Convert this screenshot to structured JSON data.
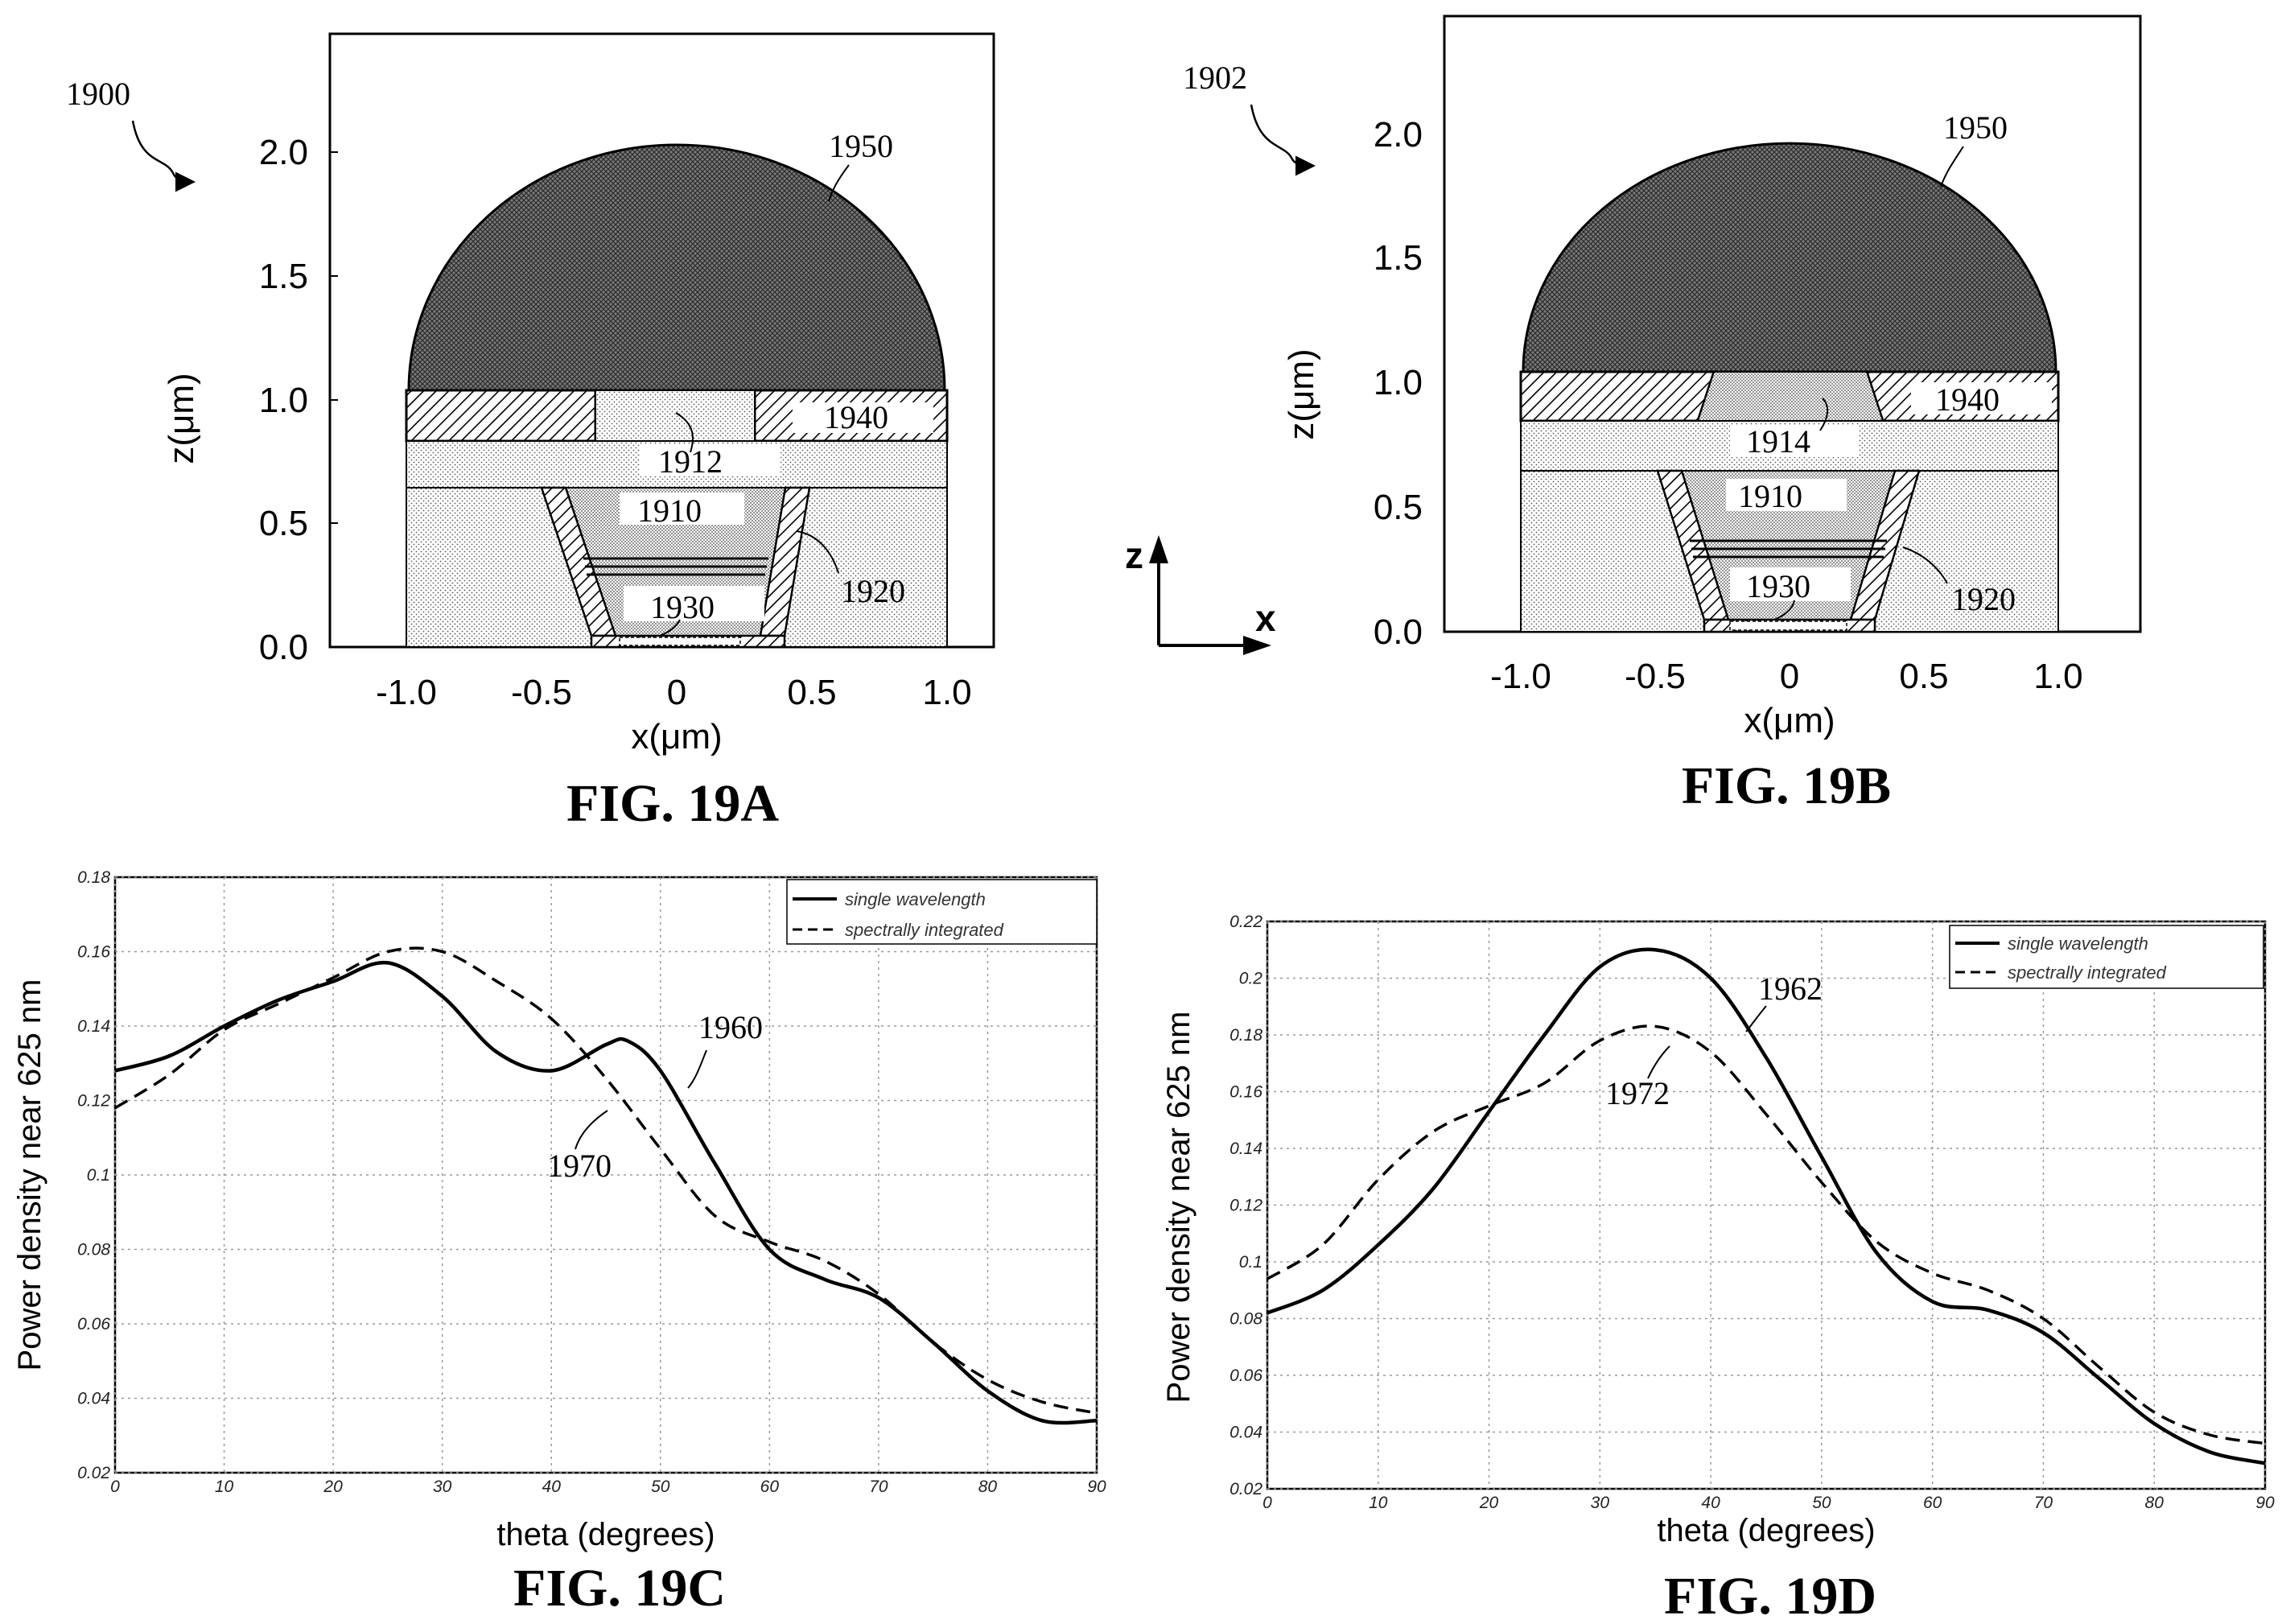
{
  "figures": {
    "fig_a": {
      "caption": "FIG. 19A",
      "ref": "1900",
      "xlabel": "x(μm)",
      "ylabel": "z(μm)",
      "xticks": [
        "-1.0",
        "-0.5",
        "0",
        "0.5",
        "1.0"
      ],
      "yticks": [
        "0.0",
        "0.5",
        "1.0",
        "1.5",
        "2.0"
      ],
      "labels": [
        "1950",
        "1940",
        "1912",
        "1910",
        "1920",
        "1930"
      ]
    },
    "fig_b": {
      "caption": "FIG. 19B",
      "ref": "1902",
      "xlabel": "x(μm)",
      "ylabel": "z(μm)",
      "xticks": [
        "-1.0",
        "-0.5",
        "0",
        "0.5",
        "1.0"
      ],
      "yticks": [
        "0.0",
        "0.5",
        "1.0",
        "1.5",
        "2.0"
      ],
      "labels": [
        "1950",
        "1940",
        "1914",
        "1910",
        "1920",
        "1930"
      ]
    },
    "axes_key": {
      "z": "z",
      "x": "x"
    },
    "fig_c": {
      "caption": "FIG. 19C",
      "curve_labels": [
        "1960",
        "1970"
      ]
    },
    "fig_d": {
      "caption": "FIG. 19D",
      "curve_labels": [
        "1962",
        "1972"
      ]
    }
  },
  "chart_data": [
    {
      "type": "line",
      "id": "fig_c",
      "xlabel": "theta (degrees)",
      "ylabel": "Power density near 625 nm",
      "xlim": [
        0,
        90
      ],
      "ylim": [
        0.02,
        0.18
      ],
      "xticks": [
        "0",
        "10",
        "20",
        "30",
        "40",
        "50",
        "60",
        "70",
        "80",
        "90"
      ],
      "yticks": [
        "0.02",
        "0.04",
        "0.06",
        "0.08",
        "0.1",
        "0.12",
        "0.14",
        "0.16",
        "0.18"
      ],
      "grid": true,
      "legend": "top-right",
      "series": [
        {
          "name": "single wavelength",
          "style": "solid",
          "x": [
            0,
            5,
            10,
            15,
            20,
            25,
            30,
            35,
            40,
            45,
            47,
            50,
            55,
            60,
            65,
            70,
            75,
            80,
            85,
            90
          ],
          "y": [
            0.128,
            0.132,
            0.14,
            0.147,
            0.152,
            0.157,
            0.148,
            0.133,
            0.128,
            0.135,
            0.136,
            0.128,
            0.103,
            0.08,
            0.072,
            0.067,
            0.055,
            0.042,
            0.034,
            0.034
          ]
        },
        {
          "name": "spectrally integrated",
          "style": "dashed",
          "x": [
            0,
            5,
            10,
            15,
            20,
            25,
            30,
            35,
            40,
            45,
            50,
            55,
            60,
            65,
            70,
            75,
            80,
            85,
            90
          ],
          "y": [
            0.118,
            0.127,
            0.139,
            0.146,
            0.153,
            0.16,
            0.16,
            0.152,
            0.142,
            0.126,
            0.107,
            0.089,
            0.082,
            0.077,
            0.068,
            0.055,
            0.045,
            0.039,
            0.036
          ]
        }
      ]
    },
    {
      "type": "line",
      "id": "fig_d",
      "xlabel": "theta (degrees)",
      "ylabel": "Power density near 625 nm",
      "xlim": [
        0,
        90
      ],
      "ylim": [
        0.02,
        0.22
      ],
      "xticks": [
        "0",
        "10",
        "20",
        "30",
        "40",
        "50",
        "60",
        "70",
        "80",
        "90"
      ],
      "yticks": [
        "0.02",
        "0.04",
        "0.06",
        "0.08",
        "0.1",
        "0.12",
        "0.14",
        "0.16",
        "0.18",
        "0.2",
        "0.22"
      ],
      "grid": true,
      "legend": "top-right",
      "series": [
        {
          "name": "single wavelength",
          "style": "solid",
          "x": [
            0,
            5,
            10,
            15,
            20,
            25,
            30,
            35,
            40,
            45,
            50,
            55,
            60,
            65,
            70,
            75,
            80,
            85,
            90
          ],
          "y": [
            0.082,
            0.09,
            0.106,
            0.126,
            0.153,
            0.18,
            0.204,
            0.21,
            0.2,
            0.172,
            0.137,
            0.103,
            0.086,
            0.083,
            0.075,
            0.059,
            0.043,
            0.033,
            0.029
          ]
        },
        {
          "name": "spectrally integrated",
          "style": "dashed",
          "x": [
            0,
            5,
            10,
            15,
            20,
            25,
            30,
            35,
            40,
            45,
            50,
            55,
            60,
            65,
            70,
            75,
            80,
            85,
            90
          ],
          "y": [
            0.094,
            0.106,
            0.129,
            0.146,
            0.155,
            0.163,
            0.178,
            0.183,
            0.174,
            0.152,
            0.128,
            0.107,
            0.096,
            0.09,
            0.08,
            0.063,
            0.047,
            0.039,
            0.036
          ]
        }
      ]
    }
  ]
}
